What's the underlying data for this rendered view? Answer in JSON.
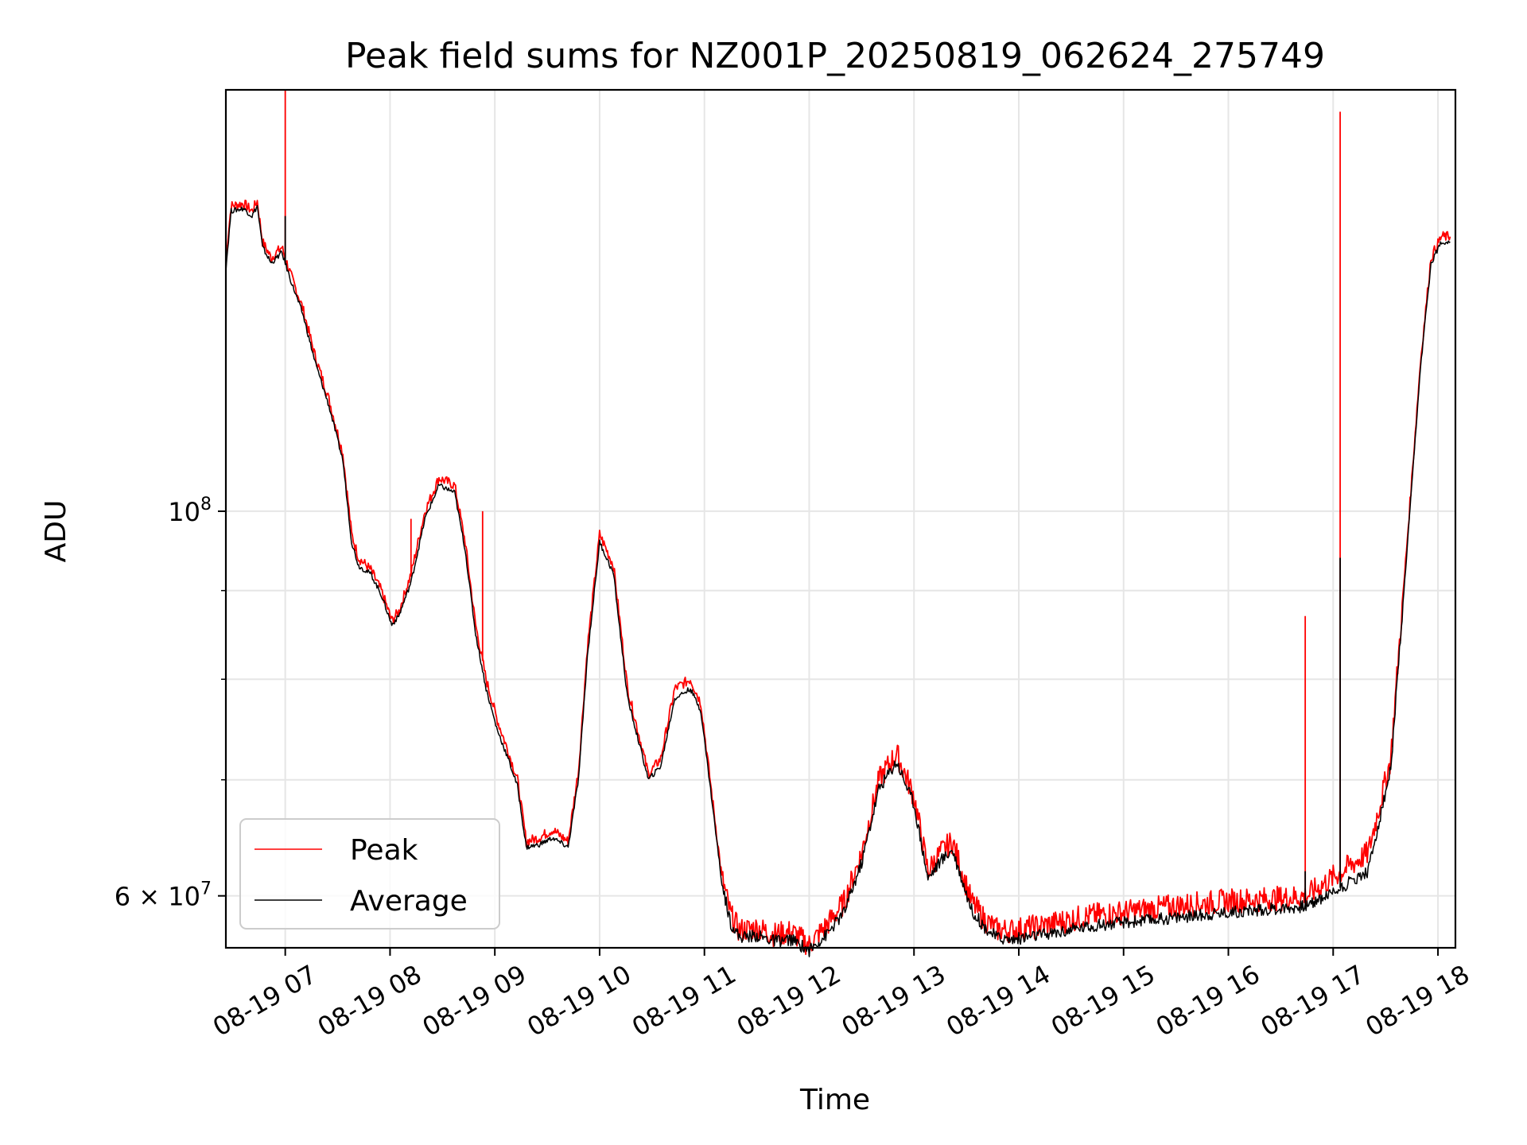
{
  "chart_data": {
    "type": "line",
    "title": "Peak field sums for NZ001P_20250819_062624_275749",
    "xlabel": "Time",
    "ylabel": "ADU",
    "x_unit": "date-time (2025-08-19)",
    "xlim": [
      "08-19 06:26",
      "08-19 18:10"
    ],
    "ylim": [
      56000000,
      175000000
    ],
    "yscale": "log",
    "grid": true,
    "legend_position": "lower-left",
    "x_ticks": [
      "08-19 07",
      "08-19 08",
      "08-19 09",
      "08-19 10",
      "08-19 11",
      "08-19 12",
      "08-19 13",
      "08-19 14",
      "08-19 15",
      "08-19 16",
      "08-19 17",
      "08-19 18"
    ],
    "y_major_ticks": [
      {
        "value": 100000000,
        "base": "10",
        "exp": "8"
      },
      {
        "value": 60000000,
        "base": "6 × 10",
        "exp": "7"
      }
    ],
    "y_minor_gridlines": [
      70000000,
      80000000,
      90000000
    ],
    "series": [
      {
        "name": "Peak",
        "color": "#ff0000",
        "x": [
          "06:26",
          "06:29",
          "06:36",
          "06:41",
          "06:44",
          "06:47",
          "06:52",
          "06:58",
          "07:00",
          "07:03",
          "07:10",
          "07:17",
          "07:25",
          "07:33",
          "07:38",
          "07:42",
          "07:49",
          "07:55",
          "08:01",
          "08:05",
          "08:12",
          "08:20",
          "08:28",
          "08:37",
          "08:43",
          "08:49",
          "08:55",
          "09:01",
          "09:08",
          "09:13",
          "09:18",
          "09:25",
          "09:33",
          "09:42",
          "09:48",
          "09:53",
          "10:00",
          "10:08",
          "10:16",
          "10:28",
          "10:35",
          "10:43",
          "10:52",
          "10:58",
          "11:04",
          "11:10",
          "11:15",
          "11:20",
          "11:30",
          "11:40",
          "11:50",
          "12:00",
          "12:10",
          "12:20",
          "12:30",
          "12:40",
          "12:50",
          "13:00",
          "13:08",
          "13:15",
          "13:22",
          "13:33",
          "13:40",
          "13:47",
          "13:55",
          "14:05",
          "14:15",
          "14:25",
          "14:35",
          "14:45",
          "15:00",
          "15:30",
          "16:00",
          "16:30",
          "16:45",
          "16:50",
          "17:00",
          "17:20",
          "17:33",
          "17:42",
          "17:50",
          "17:56",
          "18:02",
          "18:07"
        ],
        "y": [
          140000000,
          150000000,
          150500000,
          149000000,
          151000000,
          143000000,
          140000000,
          142000000,
          140000000,
          137000000,
          131000000,
          123000000,
          116000000,
          108000000,
          97000000,
          94000000,
          92500000,
          90000000,
          86500000,
          87500000,
          92000000,
          100000000,
          104500000,
          103500000,
          96000000,
          86000000,
          80000000,
          76000000,
          72500000,
          70000000,
          64500000,
          64800000,
          65500000,
          64500000,
          71000000,
          83500000,
          97000000,
          93000000,
          79000000,
          70500000,
          72000000,
          79000000,
          80000000,
          77500000,
          69000000,
          61500000,
          58500000,
          57300000,
          57500000,
          57000000,
          57200000,
          56200000,
          57700000,
          59500000,
          63500000,
          70000000,
          72500000,
          68500000,
          62000000,
          63500000,
          64500000,
          59500000,
          58200000,
          57400000,
          57300000,
          57500000,
          57700000,
          58000000,
          58300000,
          58500000,
          58700000,
          59200000,
          59600000,
          59800000,
          60000000,
          60500000,
          61500000,
          63500000,
          72000000,
          95000000,
          122000000,
          140000000,
          144000000,
          144000000
        ],
        "spikes": [
          {
            "x": "07:00",
            "y": 175000000
          },
          {
            "x": "08:12",
            "y": 99000000
          },
          {
            "x": "08:53",
            "y": 100000000
          },
          {
            "x": "16:44",
            "y": 87000000
          },
          {
            "x": "17:04",
            "y": 170000000
          }
        ]
      },
      {
        "name": "Average",
        "color": "#000000",
        "x": [
          "06:26",
          "06:29",
          "06:36",
          "06:41",
          "06:44",
          "06:47",
          "06:52",
          "06:58",
          "07:00",
          "07:03",
          "07:10",
          "07:17",
          "07:25",
          "07:33",
          "07:38",
          "07:42",
          "07:49",
          "07:55",
          "08:01",
          "08:05",
          "08:12",
          "08:20",
          "08:28",
          "08:37",
          "08:43",
          "08:49",
          "08:55",
          "09:01",
          "09:08",
          "09:13",
          "09:18",
          "09:25",
          "09:33",
          "09:42",
          "09:48",
          "09:53",
          "10:00",
          "10:08",
          "10:16",
          "10:28",
          "10:35",
          "10:43",
          "10:52",
          "10:58",
          "11:04",
          "11:10",
          "11:15",
          "11:20",
          "11:30",
          "11:40",
          "11:50",
          "12:00",
          "12:10",
          "12:20",
          "12:30",
          "12:40",
          "12:50",
          "13:00",
          "13:08",
          "13:15",
          "13:22",
          "13:33",
          "13:40",
          "13:47",
          "13:55",
          "14:05",
          "14:15",
          "14:25",
          "14:35",
          "14:45",
          "15:00",
          "15:30",
          "16:00",
          "16:30",
          "16:45",
          "16:50",
          "17:00",
          "17:20",
          "17:33",
          "17:42",
          "17:50",
          "17:56",
          "18:02",
          "18:07"
        ],
        "y": [
          138000000,
          149000000,
          149500000,
          148000000,
          150000000,
          142000000,
          139000000,
          141000000,
          139000000,
          136000000,
          130000000,
          122000000,
          115000000,
          107000000,
          96000000,
          93000000,
          92000000,
          89500000,
          86000000,
          87000000,
          91000000,
          99000000,
          103500000,
          102500000,
          95000000,
          85000000,
          79000000,
          75000000,
          71800000,
          69400000,
          64000000,
          64200000,
          64800000,
          64000000,
          70200000,
          82500000,
          96000000,
          92000000,
          78000000,
          70000000,
          71300000,
          78000000,
          79000000,
          76700000,
          68500000,
          61000000,
          57900000,
          56800000,
          56900000,
          56500000,
          56600000,
          55800000,
          57000000,
          58700000,
          62700000,
          69200000,
          71700000,
          67800000,
          61400000,
          62800000,
          63800000,
          58900000,
          57600000,
          56800000,
          56600000,
          56800000,
          57000000,
          57200000,
          57500000,
          57700000,
          57900000,
          58300000,
          58700000,
          59000000,
          59200000,
          59600000,
          60300000,
          62000000,
          71000000,
          94000000,
          121000000,
          139000000,
          143000000,
          143000000
        ],
        "spikes": [
          {
            "x": "07:00",
            "y": 148000000
          },
          {
            "x": "16:44",
            "y": 62000000
          },
          {
            "x": "17:04",
            "y": 94000000
          }
        ]
      }
    ]
  }
}
